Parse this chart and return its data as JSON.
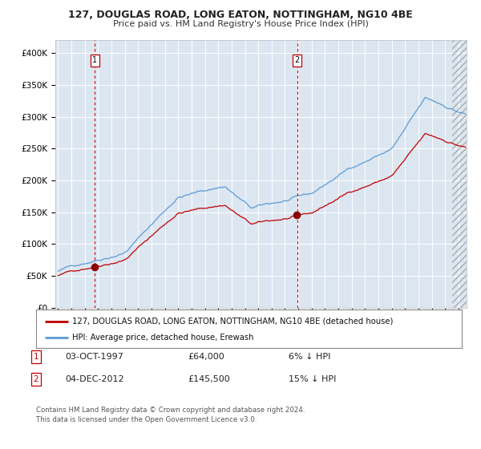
{
  "title": "127, DOUGLAS ROAD, LONG EATON, NOTTINGHAM, NG10 4BE",
  "subtitle": "Price paid vs. HM Land Registry's House Price Index (HPI)",
  "legend_line1": "127, DOUGLAS ROAD, LONG EATON, NOTTINGHAM, NG10 4BE (detached house)",
  "legend_line2": "HPI: Average price, detached house, Erewash",
  "annotation1_date": "03-OCT-1997",
  "annotation1_price": "£64,000",
  "annotation1_hpi": "6% ↓ HPI",
  "annotation2_date": "04-DEC-2012",
  "annotation2_price": "£145,500",
  "annotation2_hpi": "15% ↓ HPI",
  "footer": "Contains HM Land Registry data © Crown copyright and database right 2024.\nThis data is licensed under the Open Government Licence v3.0.",
  "sale1_year": 1997.75,
  "sale1_value": 64000,
  "sale2_year": 2012.92,
  "sale2_value": 145500,
  "hpi_line_color": "#5b9bd5",
  "price_line_color": "#c00000",
  "dot_color": "#8b0000",
  "plot_bg": "#dce6f1",
  "grid_color": "#ffffff",
  "vline_color": "#c00000",
  "ylim": [
    0,
    420000
  ],
  "yticks": [
    0,
    50000,
    100000,
    150000,
    200000,
    250000,
    300000,
    350000,
    400000
  ],
  "ytick_labels": [
    "£0",
    "£50K",
    "£100K",
    "£150K",
    "£200K",
    "£250K",
    "£300K",
    "£350K",
    "£400K"
  ],
  "xlim_start": 1994.8,
  "xlim_end": 2025.6
}
